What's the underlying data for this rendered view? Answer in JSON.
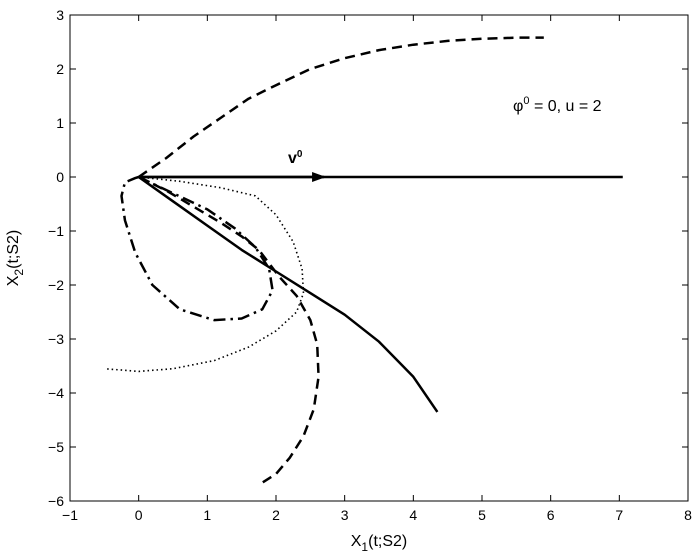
{
  "chart_data": {
    "type": "line",
    "xlabel": {
      "main": "X",
      "sub": "1",
      "rest": "(t;S2)"
    },
    "ylabel": {
      "main": "X",
      "sub": "2",
      "rest": "(t;S2)"
    },
    "xlim": [
      -1,
      8
    ],
    "ylim": [
      -6,
      3
    ],
    "xticks": [
      -1,
      0,
      1,
      2,
      3,
      4,
      5,
      6,
      7,
      8
    ],
    "yticks": [
      -6,
      -5,
      -4,
      -3,
      -2,
      -1,
      0,
      1,
      2,
      3
    ],
    "tick_labels_x": [
      "−1",
      "0",
      "1",
      "2",
      "3",
      "4",
      "5",
      "6",
      "7",
      "8"
    ],
    "tick_labels_y": [
      "−6",
      "−5",
      "−4",
      "−3",
      "−2",
      "−1",
      "0",
      "1",
      "2",
      "3"
    ],
    "grid": false,
    "annotations": {
      "params": {
        "phi": "φ",
        "phi_sup": "0",
        "rest": " = 0,  u = 2"
      },
      "vector": {
        "base": "v",
        "sup": "0"
      }
    },
    "vector_arrow": {
      "from": [
        0,
        0
      ],
      "to": [
        2.7,
        0
      ]
    },
    "series": [
      {
        "style": "solid",
        "x": [
          0,
          7.05
        ],
        "y": [
          0,
          0
        ]
      },
      {
        "style": "solid",
        "x": [
          0,
          0.5,
          1.0,
          1.5,
          2.0,
          2.5,
          3.0,
          3.5,
          4.0,
          4.35
        ],
        "y": [
          0,
          -0.45,
          -0.9,
          -1.35,
          -1.75,
          -2.15,
          -2.55,
          -3.05,
          -3.7,
          -4.35
        ]
      },
      {
        "style": "dashed",
        "x": [
          0,
          0.4,
          0.8,
          1.2,
          1.6,
          2.0,
          2.5,
          3.0,
          3.5,
          4.0,
          4.5,
          5.0,
          5.5,
          5.9
        ],
        "y": [
          0,
          0.35,
          0.75,
          1.1,
          1.45,
          1.7,
          2.0,
          2.2,
          2.35,
          2.45,
          2.52,
          2.56,
          2.58,
          2.58
        ]
      },
      {
        "style": "dashed",
        "x": [
          0,
          0.4,
          0.8,
          1.2,
          1.5,
          1.75,
          1.9,
          2.05,
          2.3,
          2.5,
          2.6,
          2.62,
          2.55,
          2.4,
          2.2,
          2.0,
          1.75
        ],
        "y": [
          0,
          -0.25,
          -0.55,
          -0.85,
          -1.1,
          -1.35,
          -1.6,
          -1.85,
          -2.2,
          -2.65,
          -3.1,
          -3.7,
          -4.3,
          -4.8,
          -5.2,
          -5.5,
          -5.7
        ]
      },
      {
        "style": "dashdot",
        "x": [
          0,
          0.5,
          1.0,
          1.4,
          1.7,
          1.9,
          1.95,
          1.8,
          1.5,
          1.1,
          0.6,
          0.2,
          -0.05,
          -0.2,
          -0.25,
          -0.2,
          -0.05,
          0
        ],
        "y": [
          0,
          -0.3,
          -0.6,
          -0.95,
          -1.3,
          -1.7,
          -2.1,
          -2.45,
          -2.62,
          -2.65,
          -2.45,
          -2.0,
          -1.4,
          -0.8,
          -0.35,
          -0.1,
          -0.02,
          0
        ]
      },
      {
        "style": "dotted",
        "x": [
          0,
          0.6,
          1.2,
          1.7,
          2.0,
          2.25,
          2.38,
          2.4,
          2.3,
          2.0,
          1.6,
          1.1,
          0.5,
          0,
          -0.5
        ],
        "y": [
          0,
          -0.08,
          -0.2,
          -0.35,
          -0.7,
          -1.2,
          -1.7,
          -2.15,
          -2.5,
          -2.85,
          -3.15,
          -3.4,
          -3.55,
          -3.6,
          -3.55
        ]
      }
    ]
  }
}
